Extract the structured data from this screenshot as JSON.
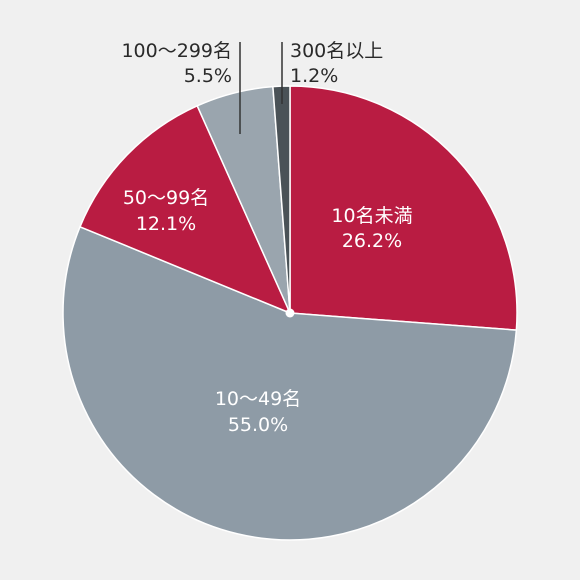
{
  "chart_data": {
    "type": "pie",
    "title": "",
    "categories": [
      "10名未満",
      "10〜49名",
      "50〜99名",
      "100〜299名",
      "300名以上"
    ],
    "values": [
      26.2,
      55.0,
      12.1,
      5.5,
      1.2
    ],
    "labels": [
      "26.2%",
      "55.0%",
      "12.1%",
      "5.5%",
      "1.2%"
    ],
    "colors": [
      "#b91c42",
      "#8e9ba6",
      "#b91c42",
      "#9aa5ae",
      "#4a5257"
    ],
    "start_angle_deg": 0,
    "direction": "clockwise",
    "legend": "none"
  }
}
